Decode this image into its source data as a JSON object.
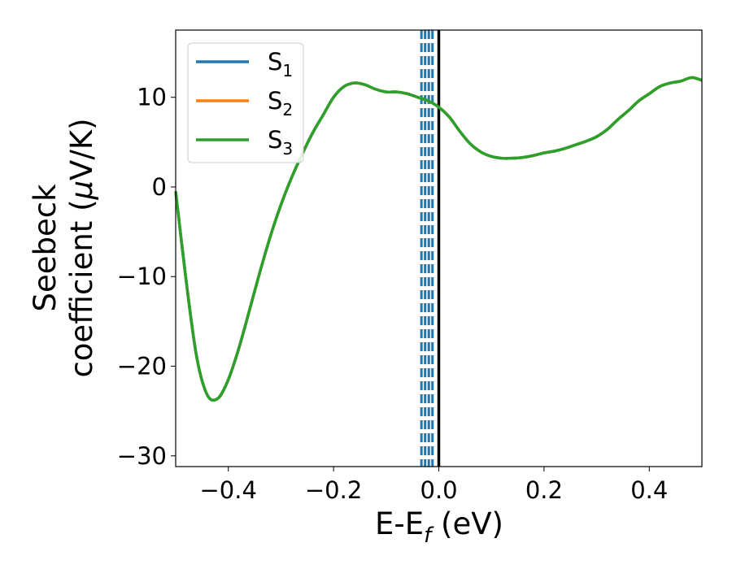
{
  "chart_data": {
    "type": "line",
    "xlabel": "E-E",
    "xlabel_sub": "f",
    "xlabel_unit": " (eV)",
    "ylabel_line1": "Seebeck",
    "ylabel_line2": "coefficient  (",
    "ylabel_mu": "μ",
    "ylabel_tail": "V/K)",
    "xlim": [
      -0.5,
      0.5
    ],
    "ylim": [
      -31.2,
      17.5
    ],
    "xticks": [
      -0.4,
      -0.2,
      0.0,
      0.2,
      0.4
    ],
    "xtick_labels": [
      "−0.4",
      "−0.2",
      "0.0",
      "0.2",
      "0.4"
    ],
    "yticks": [
      -30,
      -20,
      -10,
      0,
      10
    ],
    "ytick_labels": [
      "−30",
      "−20",
      "−10",
      "0",
      "10"
    ],
    "legend_position": "top-left",
    "colors": {
      "S1": "#1f77b4",
      "S2": "#ff7f0e",
      "S3": "#2ca02c",
      "fermi": "#000000"
    },
    "series": [
      {
        "name": "S",
        "sub": "1",
        "color": "#1f77b4"
      },
      {
        "name": "S",
        "sub": "2",
        "color": "#ff7f0e"
      },
      {
        "name": "S",
        "sub": "3",
        "color": "#2ca02c"
      }
    ],
    "curve": {
      "x": [
        -0.5,
        -0.48,
        -0.46,
        -0.44,
        -0.42,
        -0.4,
        -0.38,
        -0.36,
        -0.34,
        -0.32,
        -0.3,
        -0.28,
        -0.26,
        -0.24,
        -0.22,
        -0.2,
        -0.18,
        -0.16,
        -0.14,
        -0.12,
        -0.1,
        -0.08,
        -0.06,
        -0.04,
        -0.02,
        0.0,
        0.02,
        0.04,
        0.06,
        0.08,
        0.1,
        0.12,
        0.14,
        0.16,
        0.18,
        0.2,
        0.22,
        0.24,
        0.26,
        0.28,
        0.3,
        0.32,
        0.34,
        0.36,
        0.38,
        0.4,
        0.42,
        0.44,
        0.46,
        0.48,
        0.5
      ],
      "y": [
        -0.5,
        -10.5,
        -19.0,
        -23.2,
        -23.6,
        -21.5,
        -18.0,
        -13.8,
        -9.5,
        -5.5,
        -2.0,
        1.0,
        3.6,
        6.0,
        8.0,
        10.0,
        11.2,
        11.6,
        11.4,
        10.9,
        10.6,
        10.6,
        10.4,
        10.0,
        9.6,
        8.9,
        7.8,
        6.2,
        4.8,
        3.9,
        3.4,
        3.2,
        3.2,
        3.3,
        3.5,
        3.8,
        4.0,
        4.3,
        4.7,
        5.1,
        5.6,
        6.4,
        7.5,
        8.5,
        9.6,
        10.4,
        11.2,
        11.6,
        11.8,
        12.2,
        11.9
      ]
    },
    "fermi_line_x": 0.0,
    "dashed_lines_x": [
      -0.033,
      -0.026,
      -0.019,
      -0.012
    ]
  }
}
